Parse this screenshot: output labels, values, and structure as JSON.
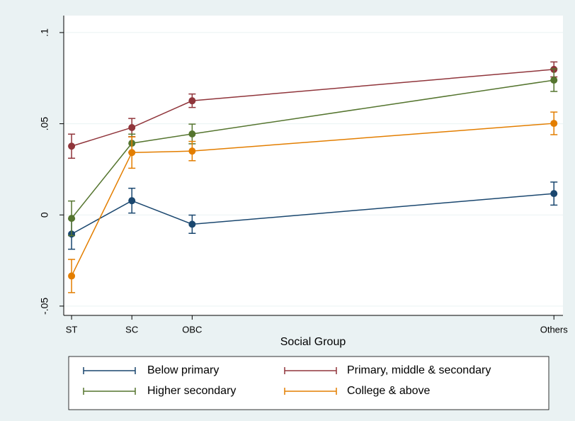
{
  "chart_data": {
    "type": "line",
    "x_label": "Social Group",
    "x": [
      1,
      2,
      3,
      9
    ],
    "xlim": [
      0.87,
      9.15
    ],
    "xticks": [
      {
        "value": 1,
        "label": "ST"
      },
      {
        "value": 2,
        "label": "SC"
      },
      {
        "value": 3,
        "label": "OBC"
      },
      {
        "value": 9,
        "label": "Others"
      }
    ],
    "ylim": [
      -0.0551,
      0.1093
    ],
    "yticks": [
      {
        "value": -0.05,
        "label": "-.05"
      },
      0,
      {
        "value": 0.05,
        "label": ".05"
      },
      {
        "value": 0.1,
        "label": ".1"
      }
    ],
    "grid": true,
    "legend": "bottom",
    "series": [
      {
        "name": "Below primary",
        "color": "#1a476f",
        "values": [
          -0.0105,
          0.0078,
          -0.0051,
          0.0117
        ],
        "errors": [
          0.0083,
          0.0068,
          0.005,
          0.0063
        ]
      },
      {
        "name": "Primary, middle & secondary",
        "color": "#90353b",
        "values": [
          0.0377,
          0.0479,
          0.0626,
          0.0798
        ],
        "errors": [
          0.0066,
          0.005,
          0.0037,
          0.0041
        ]
      },
      {
        "name": "Higher secondary",
        "color": "#55752f",
        "values": [
          -0.0019,
          0.0393,
          0.0444,
          0.0739
        ],
        "errors": [
          0.0095,
          0.005,
          0.0054,
          0.0062
        ]
      },
      {
        "name": "College & above",
        "color": "#e37e00",
        "values": [
          -0.0335,
          0.0342,
          0.035,
          0.0502
        ],
        "errors": [
          0.0091,
          0.0086,
          0.0053,
          0.0062
        ]
      }
    ]
  }
}
